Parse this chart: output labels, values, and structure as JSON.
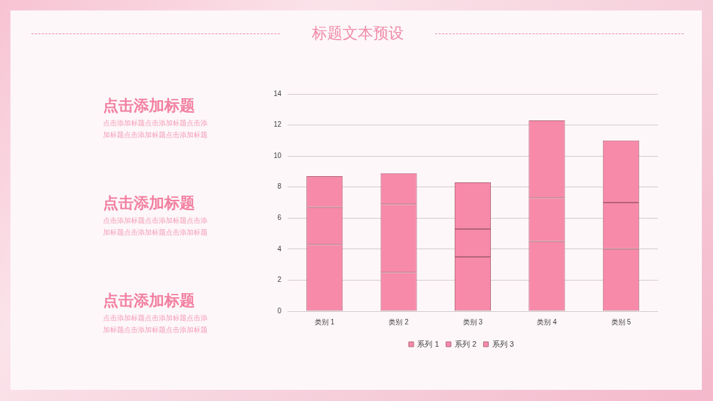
{
  "chart_data": {
    "type": "bar",
    "title": "标题文本预设",
    "categories": [
      "类别 1",
      "类别 2",
      "类别 3",
      "类别 4",
      "类别 5"
    ],
    "series": [
      {
        "name": "系列 1",
        "color": "#f78aa9",
        "values": [
          4.3,
          2.5,
          3.5,
          4.5,
          4
        ]
      },
      {
        "name": "系列 2",
        "color": "#f78aa9",
        "values": [
          2.4,
          4.4,
          1.8,
          2.8,
          3
        ]
      },
      {
        "name": "系列 3",
        "color": "#f78aa9",
        "values": [
          2,
          2,
          3,
          5,
          4
        ]
      }
    ],
    "stacked": true,
    "ylim": [
      0,
      14
    ],
    "yticks": [
      0,
      2,
      4,
      6,
      8,
      10,
      12,
      14
    ],
    "grid": "y",
    "legend": "bottom",
    "annotations": [
      "点击添加标题",
      "点击添加标题点击添加标题点击添加标题点击添加标题点击添加标题",
      "点击添加标题",
      "点击添加标题点击添加标题点击添加标题点击添加标题点击添加标题",
      "点击添加标题",
      "点击添加标题点击添加标题点击添加标题点击添加标题点击添加标题"
    ]
  }
}
